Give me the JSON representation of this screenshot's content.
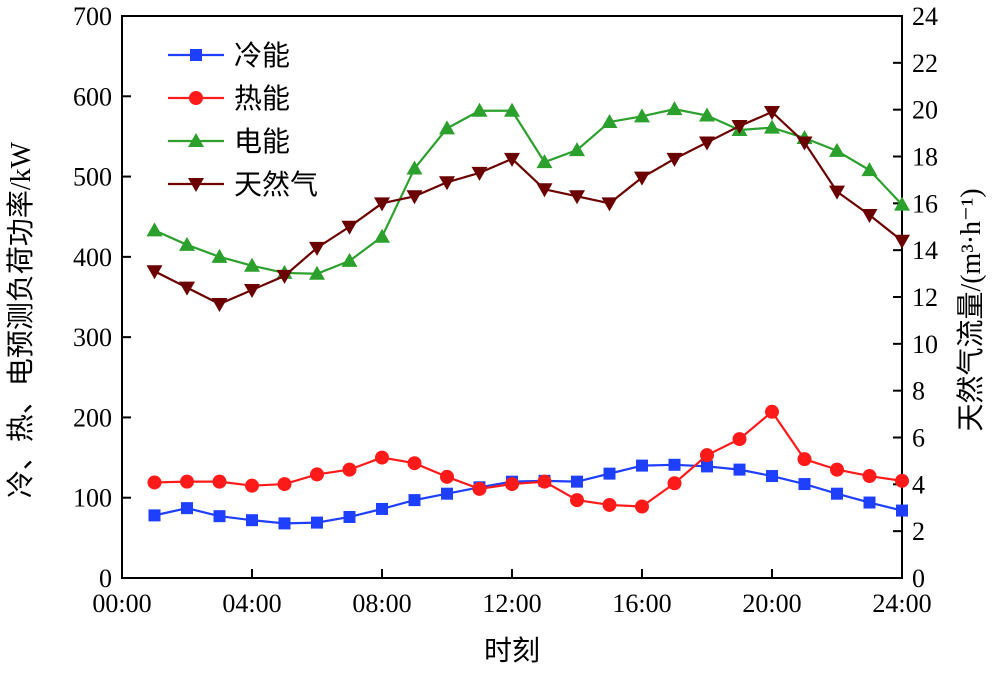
{
  "chart_data": {
    "type": "line",
    "xlabel": "时刻",
    "ylabel_left": "冷、热、电预测负荷功率/kW",
    "ylabel_right": "天然气流量/(m³·h⁻¹)",
    "x": [
      1,
      2,
      3,
      4,
      5,
      6,
      7,
      8,
      9,
      10,
      11,
      12,
      13,
      14,
      15,
      16,
      17,
      18,
      19,
      20,
      21,
      22,
      23,
      24
    ],
    "x_ticks": [
      0,
      4,
      8,
      12,
      16,
      20,
      24
    ],
    "x_tick_labels": [
      "00:00",
      "04:00",
      "08:00",
      "12:00",
      "16:00",
      "20:00",
      "24:00"
    ],
    "xlim": [
      0,
      24
    ],
    "ylim_left": [
      0,
      700
    ],
    "y_left_ticks": [
      0,
      100,
      200,
      300,
      400,
      500,
      600,
      700
    ],
    "y_left_tick_labels": [
      "0",
      "100",
      "200",
      "300",
      "400",
      "500",
      "600",
      "700"
    ],
    "ylim_right": [
      0,
      24
    ],
    "y_right_ticks": [
      0,
      2,
      4,
      6,
      8,
      10,
      12,
      14,
      16,
      18,
      20,
      22,
      24
    ],
    "y_right_tick_labels": [
      "0",
      "2",
      "4",
      "6",
      "8",
      "10",
      "12",
      "14",
      "16",
      "18",
      "20",
      "22",
      "24"
    ],
    "grid": false,
    "legend_position": "top-left",
    "series": [
      {
        "name": "冷能",
        "axis": "left",
        "color": "#1f3fff",
        "marker": "square",
        "values": [
          78,
          87,
          77,
          72,
          68,
          69,
          76,
          86,
          97,
          105,
          113,
          120,
          121,
          120,
          130,
          140,
          141,
          139,
          135,
          127,
          117,
          105,
          94,
          84
        ]
      },
      {
        "name": "热能",
        "axis": "left",
        "color": "#ff1a1a",
        "marker": "circle",
        "values": [
          119,
          120,
          120,
          115,
          117,
          129,
          135,
          150,
          143,
          126,
          111,
          117,
          120,
          97,
          91,
          89,
          118,
          153,
          173,
          207,
          148,
          135,
          127,
          121
        ]
      },
      {
        "name": "电能",
        "axis": "left",
        "color": "#2ca02c",
        "marker": "triangle-up",
        "values": [
          433,
          415,
          400,
          389,
          380,
          379,
          395,
          425,
          510,
          560,
          582,
          582,
          518,
          533,
          568,
          575,
          584,
          576,
          558,
          561,
          548,
          532,
          508,
          465
        ]
      },
      {
        "name": "天然气",
        "axis": "right",
        "color": "#6b0000",
        "marker": "triangle-down",
        "values": [
          13.1,
          12.4,
          11.7,
          12.3,
          12.9,
          14.1,
          15.0,
          16.0,
          16.3,
          16.9,
          17.3,
          17.9,
          16.6,
          16.3,
          16.0,
          17.1,
          17.9,
          18.6,
          19.3,
          19.9,
          18.6,
          16.5,
          15.5,
          14.4
        ]
      }
    ]
  }
}
